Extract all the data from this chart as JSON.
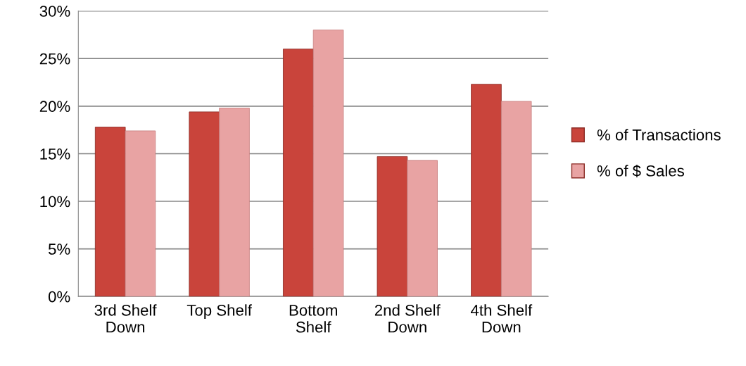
{
  "chart_data": {
    "type": "bar",
    "categories": [
      "3rd Shelf\nDown",
      "Top Shelf",
      "Bottom\nShelf",
      "2nd Shelf\nDown",
      "4th Shelf\nDown"
    ],
    "series": [
      {
        "name": "% of Transactions",
        "color": "#c9443b",
        "values": [
          17.8,
          19.4,
          26.0,
          14.7,
          22.3
        ]
      },
      {
        "name": "% of $ Sales",
        "color": "#e8a3a3",
        "values": [
          17.4,
          19.8,
          28.0,
          14.3,
          20.5
        ]
      }
    ],
    "ylim": [
      0,
      30
    ],
    "yticks": [
      {
        "value": 0,
        "label": "0%"
      },
      {
        "value": 5,
        "label": "5%"
      },
      {
        "value": 10,
        "label": "10%"
      },
      {
        "value": 15,
        "label": "15%"
      },
      {
        "value": 20,
        "label": "20%"
      },
      {
        "value": 25,
        "label": "25%"
      },
      {
        "value": 30,
        "label": "30%"
      }
    ],
    "grid": "y",
    "legend": "right"
  }
}
